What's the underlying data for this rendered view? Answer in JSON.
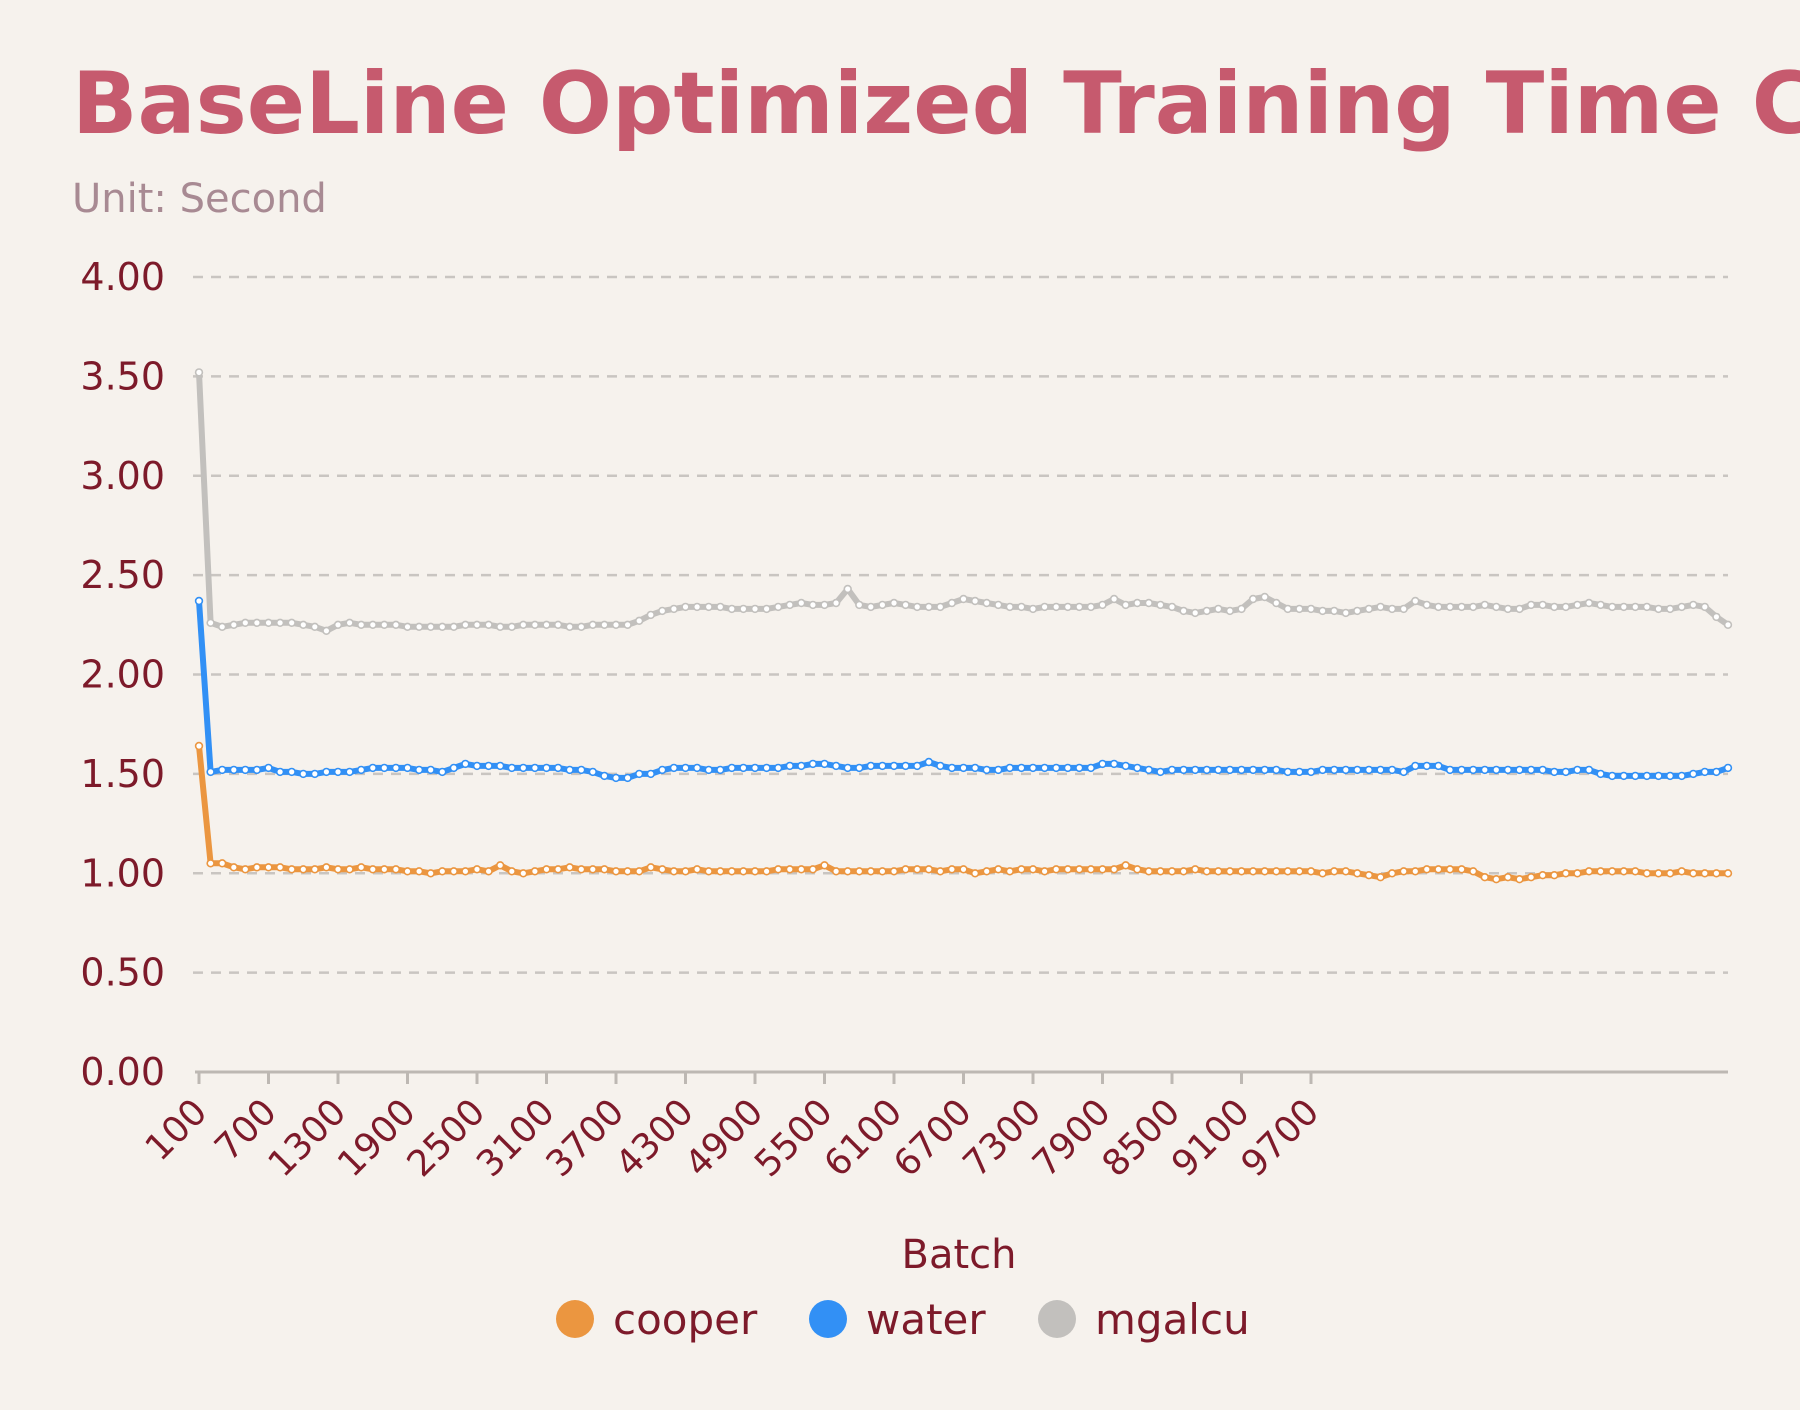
{
  "chart_data": {
    "type": "line",
    "title": "BaseLine Optimized Training Time Chart",
    "subtitle": "Unit:  Second",
    "xlabel": "Batch",
    "ylabel": "",
    "ylim": [
      0,
      4
    ],
    "yticks": [
      "0.00",
      "0.50",
      "1.00",
      "1.50",
      "2.00",
      "2.50",
      "3.00",
      "3.50",
      "4.00"
    ],
    "x_min": 100,
    "x_step": 100,
    "xticks": [
      "100",
      "700",
      "1300",
      "1900",
      "2500",
      "3100",
      "3700",
      "4300",
      "4900",
      "5500",
      "6100",
      "6700",
      "7300",
      "7900",
      "8500",
      "9100",
      "9700"
    ],
    "grid": true,
    "legend_position": "bottom",
    "colors": {
      "cooper": "#eb9640",
      "water": "#3290f5",
      "mgalcu": "#c2c0bd"
    },
    "series": [
      {
        "name": "cooper",
        "values": [
          1.64,
          1.05,
          1.05,
          1.03,
          1.02,
          1.03,
          1.03,
          1.03,
          1.02,
          1.02,
          1.02,
          1.03,
          1.02,
          1.02,
          1.03,
          1.02,
          1.02,
          1.02,
          1.01,
          1.01,
          1.0,
          1.01,
          1.01,
          1.01,
          1.02,
          1.01,
          1.04,
          1.01,
          1.0,
          1.01,
          1.02,
          1.02,
          1.03,
          1.02,
          1.02,
          1.02,
          1.01,
          1.01,
          1.01,
          1.03,
          1.02,
          1.01,
          1.01,
          1.02,
          1.01,
          1.01,
          1.01,
          1.01,
          1.01,
          1.01,
          1.02,
          1.02,
          1.02,
          1.02,
          1.04,
          1.01,
          1.01,
          1.01,
          1.01,
          1.01,
          1.01,
          1.02,
          1.02,
          1.02,
          1.01,
          1.02,
          1.02,
          1.0,
          1.01,
          1.02,
          1.01,
          1.02,
          1.02,
          1.01,
          1.02,
          1.02,
          1.02,
          1.02,
          1.02,
          1.02,
          1.04,
          1.02,
          1.01,
          1.01,
          1.01,
          1.01,
          1.02,
          1.01,
          1.01,
          1.01,
          1.01,
          1.01,
          1.01,
          1.01,
          1.01,
          1.01,
          1.01,
          1.0,
          1.01,
          1.01,
          1.0,
          0.99,
          0.98,
          1.0,
          1.01,
          1.01,
          1.02,
          1.02,
          1.02,
          1.02,
          1.01,
          0.98,
          0.97,
          0.98,
          0.97,
          0.98,
          0.99,
          0.99,
          1.0,
          1.0,
          1.01,
          1.01,
          1.01,
          1.01,
          1.01,
          1.0,
          1.0,
          1.0,
          1.01,
          1.0,
          1.0,
          1.0,
          1.0
        ]
      },
      {
        "name": "water",
        "values": [
          2.37,
          1.51,
          1.52,
          1.52,
          1.52,
          1.52,
          1.53,
          1.51,
          1.51,
          1.5,
          1.5,
          1.51,
          1.51,
          1.51,
          1.52,
          1.53,
          1.53,
          1.53,
          1.53,
          1.52,
          1.52,
          1.51,
          1.53,
          1.55,
          1.54,
          1.54,
          1.54,
          1.53,
          1.53,
          1.53,
          1.53,
          1.53,
          1.52,
          1.52,
          1.51,
          1.49,
          1.48,
          1.48,
          1.5,
          1.5,
          1.52,
          1.53,
          1.53,
          1.53,
          1.52,
          1.52,
          1.53,
          1.53,
          1.53,
          1.53,
          1.53,
          1.54,
          1.54,
          1.55,
          1.55,
          1.54,
          1.53,
          1.53,
          1.54,
          1.54,
          1.54,
          1.54,
          1.54,
          1.56,
          1.54,
          1.53,
          1.53,
          1.53,
          1.52,
          1.52,
          1.53,
          1.53,
          1.53,
          1.53,
          1.53,
          1.53,
          1.53,
          1.53,
          1.55,
          1.55,
          1.54,
          1.53,
          1.52,
          1.51,
          1.52,
          1.52,
          1.52,
          1.52,
          1.52,
          1.52,
          1.52,
          1.52,
          1.52,
          1.52,
          1.51,
          1.51,
          1.51,
          1.52,
          1.52,
          1.52,
          1.52,
          1.52,
          1.52,
          1.52,
          1.51,
          1.54,
          1.54,
          1.54,
          1.52,
          1.52,
          1.52,
          1.52,
          1.52,
          1.52,
          1.52,
          1.52,
          1.52,
          1.51,
          1.51,
          1.52,
          1.52,
          1.5,
          1.49,
          1.49,
          1.49,
          1.49,
          1.49,
          1.49,
          1.49,
          1.5,
          1.51,
          1.51,
          1.53
        ]
      },
      {
        "name": "mgalcu",
        "values": [
          3.52,
          2.26,
          2.24,
          2.25,
          2.26,
          2.26,
          2.26,
          2.26,
          2.26,
          2.25,
          2.24,
          2.22,
          2.25,
          2.26,
          2.25,
          2.25,
          2.25,
          2.25,
          2.24,
          2.24,
          2.24,
          2.24,
          2.24,
          2.25,
          2.25,
          2.25,
          2.24,
          2.24,
          2.25,
          2.25,
          2.25,
          2.25,
          2.24,
          2.24,
          2.25,
          2.25,
          2.25,
          2.25,
          2.27,
          2.3,
          2.32,
          2.33,
          2.34,
          2.34,
          2.34,
          2.34,
          2.33,
          2.33,
          2.33,
          2.33,
          2.34,
          2.35,
          2.36,
          2.35,
          2.35,
          2.36,
          2.43,
          2.35,
          2.34,
          2.35,
          2.36,
          2.35,
          2.34,
          2.34,
          2.34,
          2.36,
          2.38,
          2.37,
          2.36,
          2.35,
          2.34,
          2.34,
          2.33,
          2.34,
          2.34,
          2.34,
          2.34,
          2.34,
          2.35,
          2.38,
          2.35,
          2.36,
          2.36,
          2.35,
          2.34,
          2.32,
          2.31,
          2.32,
          2.33,
          2.32,
          2.33,
          2.38,
          2.39,
          2.36,
          2.33,
          2.33,
          2.33,
          2.32,
          2.32,
          2.31,
          2.32,
          2.33,
          2.34,
          2.33,
          2.33,
          2.37,
          2.35,
          2.34,
          2.34,
          2.34,
          2.34,
          2.35,
          2.34,
          2.33,
          2.33,
          2.35,
          2.35,
          2.34,
          2.34,
          2.35,
          2.36,
          2.35,
          2.34,
          2.34,
          2.34,
          2.34,
          2.33,
          2.33,
          2.34,
          2.35,
          2.34,
          2.29,
          2.25
        ]
      }
    ]
  }
}
